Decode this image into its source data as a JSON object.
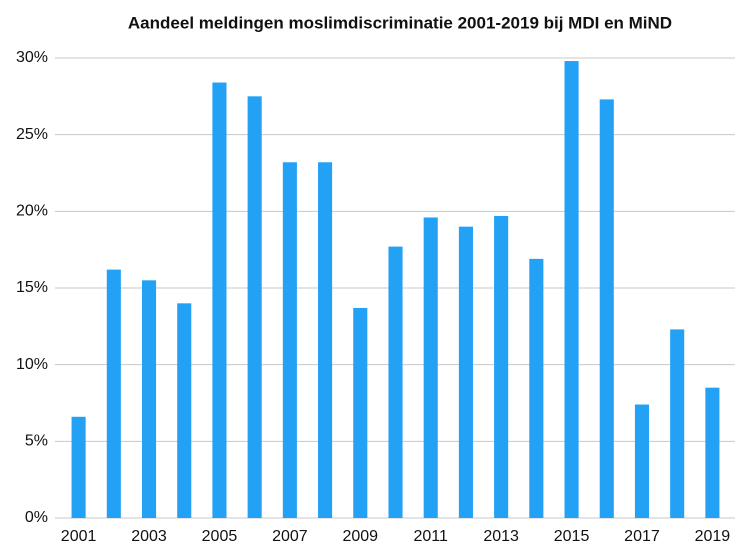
{
  "chart_data": {
    "type": "bar",
    "title": "Aandeel meldingen moslimdiscriminatie 2001-2019 bij MDI en MiND",
    "categories": [
      "2001",
      null,
      "2003",
      null,
      "2005",
      null,
      "2007",
      null,
      "2009",
      null,
      "2011",
      null,
      "2013",
      null,
      "2015",
      null,
      "2017",
      null,
      "2019"
    ],
    "values": [
      6.6,
      16.2,
      15.5,
      14.0,
      28.4,
      27.5,
      23.2,
      23.2,
      13.7,
      17.7,
      19.6,
      19.0,
      19.7,
      16.9,
      29.8,
      27.3,
      7.4,
      12.3,
      8.5
    ],
    "color": "#22a1f5",
    "ylim": [
      0,
      30
    ],
    "yticks": [
      {
        "value": 0,
        "label": "0%"
      },
      {
        "value": 5,
        "label": "5%"
      },
      {
        "value": 10,
        "label": "10%"
      },
      {
        "value": 15,
        "label": "15%"
      },
      {
        "value": 20,
        "label": "20%"
      },
      {
        "value": 25,
        "label": "25%"
      },
      {
        "value": 30,
        "label": "30%"
      }
    ],
    "grid": true
  }
}
